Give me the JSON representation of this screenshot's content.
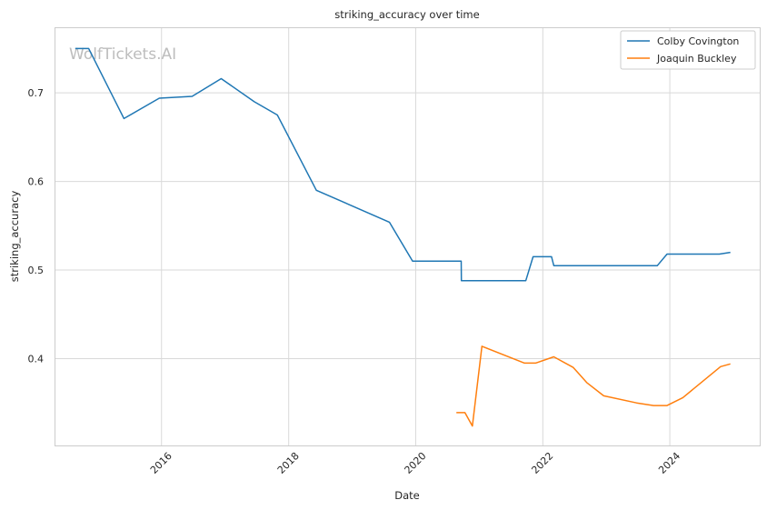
{
  "chart_data": {
    "type": "line",
    "title": "striking_accuracy over time",
    "xlabel": "Date",
    "ylabel": "striking_accuracy",
    "watermark": "WolfTickets.AI",
    "x_ticks": [
      "2016",
      "2018",
      "2020",
      "2022",
      "2024"
    ],
    "y_ticks": [
      "0.4",
      "0.5",
      "0.6",
      "0.7"
    ],
    "xlim": [
      "2014-05-01",
      "2025-06-01"
    ],
    "ylim": [
      0.302,
      0.773
    ],
    "grid": true,
    "legend_position": "top-right",
    "series": [
      {
        "name": "Colby Covington",
        "color": "#1f77b4",
        "points": [
          [
            "2014-08-23",
            0.75
          ],
          [
            "2014-11-08",
            0.75
          ],
          [
            "2015-05-30",
            0.671
          ],
          [
            "2015-12-19",
            0.694
          ],
          [
            "2016-06-25",
            0.696
          ],
          [
            "2016-12-09",
            0.716
          ],
          [
            "2017-06-17",
            0.69
          ],
          [
            "2017-10-28",
            0.675
          ],
          [
            "2018-06-09",
            0.59
          ],
          [
            "2019-08-03",
            0.554
          ],
          [
            "2019-12-14",
            0.51
          ],
          [
            "2020-09-19",
            0.51
          ],
          [
            "2020-09-20",
            0.488
          ],
          [
            "2021-09-25",
            0.488
          ],
          [
            "2021-11-06",
            0.515
          ],
          [
            "2022-02-20",
            0.515
          ],
          [
            "2022-03-05",
            0.505
          ],
          [
            "2023-10-21",
            0.505
          ],
          [
            "2023-12-16",
            0.518
          ],
          [
            "2024-10-12",
            0.518
          ],
          [
            "2024-12-14",
            0.52
          ]
        ]
      },
      {
        "name": "Joaquin Buckley",
        "color": "#ff7f0e",
        "points": [
          [
            "2020-08-22",
            0.339
          ],
          [
            "2020-10-10",
            0.339
          ],
          [
            "2020-11-22",
            0.324
          ],
          [
            "2021-01-16",
            0.414
          ],
          [
            "2021-09-18",
            0.395
          ],
          [
            "2021-11-20",
            0.395
          ],
          [
            "2022-03-05",
            0.402
          ],
          [
            "2022-06-25",
            0.39
          ],
          [
            "2022-09-10",
            0.373
          ],
          [
            "2022-12-17",
            0.358
          ],
          [
            "2023-06-24",
            0.35
          ],
          [
            "2023-09-30",
            0.347
          ],
          [
            "2023-12-16",
            0.347
          ],
          [
            "2024-03-16",
            0.356
          ],
          [
            "2024-10-19",
            0.391
          ],
          [
            "2024-12-14",
            0.394
          ]
        ]
      }
    ]
  }
}
